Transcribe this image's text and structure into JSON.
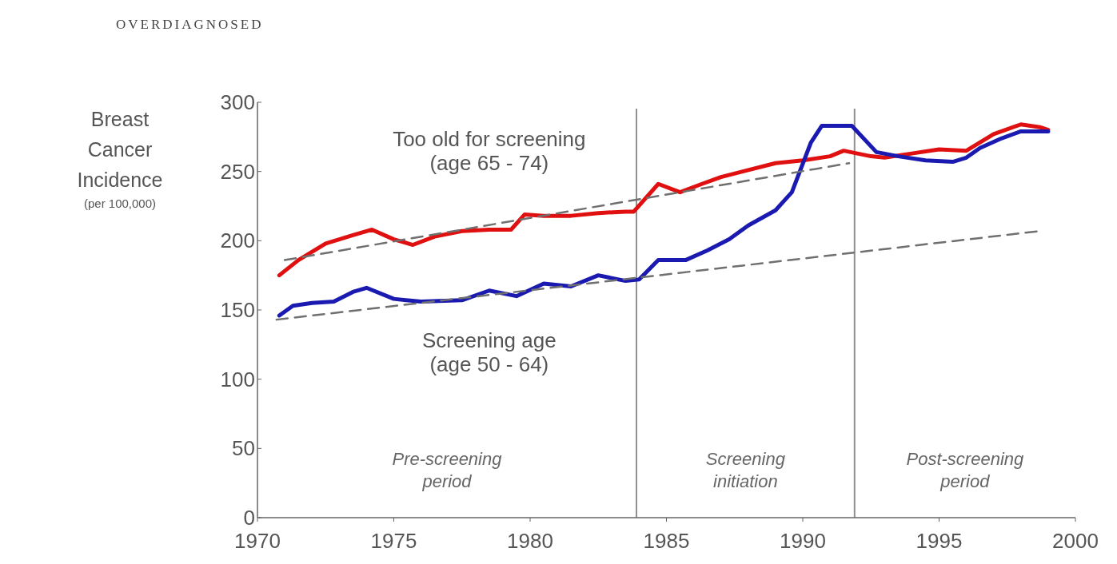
{
  "chart_data": {
    "type": "line",
    "title": "OVERDIAGNOSED",
    "ylabel": "Breast Cancer Incidence (per 100,000)",
    "xlim": [
      1970,
      2000
    ],
    "xticks": [
      1970,
      1975,
      1980,
      1985,
      1990,
      1995,
      2000
    ],
    "ylim": [
      0,
      300
    ],
    "yticks": [
      0,
      50,
      100,
      150,
      200,
      250,
      300
    ],
    "grid": false,
    "series": [
      {
        "name": "Too old for screening (age 65 - 74)",
        "color": "#e01010",
        "x": [
          1970.8,
          1971.5,
          1972.5,
          1973.5,
          1974.2,
          1975,
          1975.7,
          1976.5,
          1977.5,
          1978.5,
          1979.3,
          1979.8,
          1980.5,
          1981.5,
          1982.5,
          1983.5,
          1983.8,
          1984.7,
          1985.5,
          1986.3,
          1987,
          1988,
          1989,
          1990,
          1991,
          1991.5,
          1992.5,
          1993,
          1994,
          1995,
          1996,
          1997,
          1998,
          1998.7,
          1999
        ],
        "values": [
          175,
          186,
          198,
          204,
          208,
          201,
          197,
          203,
          207,
          208,
          208,
          219,
          218,
          218,
          220,
          221,
          221,
          241,
          235,
          241,
          246,
          251,
          256,
          258,
          261,
          265,
          261,
          260,
          263,
          266,
          265,
          277,
          284,
          282,
          280
        ]
      },
      {
        "name": "Screening age (age 50 - 64)",
        "color": "#1a1ab0",
        "x": [
          1970.8,
          1971.3,
          1972,
          1972.8,
          1973.5,
          1974,
          1975,
          1976,
          1977.5,
          1978.5,
          1979.5,
          1980.5,
          1981.5,
          1982.5,
          1983.5,
          1984,
          1984.7,
          1985.7,
          1986.5,
          1987.3,
          1988,
          1989,
          1989.6,
          1990.3,
          1990.7,
          1991.8,
          1992.7,
          1993.5,
          1994.5,
          1995.5,
          1996,
          1996.5,
          1997.3,
          1998,
          1999
        ],
        "values": [
          146,
          153,
          155,
          156,
          163,
          166,
          158,
          156,
          157,
          164,
          160,
          169,
          167,
          175,
          171,
          172,
          186,
          186,
          193,
          201,
          211,
          222,
          235,
          271,
          283,
          283,
          264,
          261,
          258,
          257,
          260,
          267,
          274,
          279,
          279
        ]
      },
      {
        "type": "line",
        "color": "#707070",
        "line_style": "dashed",
        "x": [
          1971,
          1991.7
        ],
        "values": [
          186,
          256
        ]
      },
      {
        "type": "line",
        "color": "#707070",
        "line_style": "dashed",
        "x": [
          1970.7,
          1998.7
        ],
        "values": [
          143,
          207
        ]
      }
    ],
    "ref_lines": [
      {
        "axis": "x",
        "value": 1983.9,
        "color": "#909090"
      },
      {
        "axis": "x",
        "value": 1991.9,
        "color": "#909090"
      }
    ],
    "annotations": [
      "Pre-screening period",
      "Screening initiation",
      "Post-screening period"
    ]
  }
}
